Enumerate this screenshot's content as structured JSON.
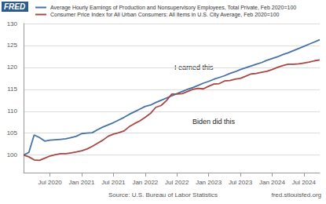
{
  "chart_data": {
    "type": "line",
    "logo": "FRED",
    "source": "Source: U.S. Bureau of Labor Statistics",
    "credit": "fred.stlouisfed.org",
    "annotations": [
      "I earned this",
      "Biden did this"
    ],
    "categories": [
      null,
      null,
      null,
      null,
      null,
      "Jul 2020",
      null,
      null,
      null,
      null,
      null,
      "Jan 2021",
      null,
      null,
      null,
      null,
      null,
      "Jul 2021",
      null,
      null,
      null,
      null,
      null,
      "Jan 2022",
      null,
      null,
      null,
      null,
      null,
      "Jul 2022",
      null,
      null,
      null,
      null,
      null,
      "Jan 2023",
      null,
      null,
      null,
      null,
      null,
      "Jul 2023",
      null,
      null,
      null,
      null,
      null,
      "Jan 2024",
      null,
      null,
      null,
      null,
      null,
      "Jul 2024",
      null,
      null,
      null
    ],
    "series": [
      {
        "name": "Average Hourly Earnings of Production and Nonsupervisory Employees, Total Private, Feb 2020=100",
        "color": "#4572a7",
        "values": [
          100,
          100.6,
          104.6,
          104.0,
          103.2,
          103.4,
          103.5,
          103.6,
          103.7,
          104.0,
          104.3,
          104.9,
          105.0,
          105.1,
          105.8,
          106.4,
          106.9,
          107.4,
          108.0,
          108.6,
          109.3,
          109.9,
          110.5,
          111.1,
          111.4,
          112.0,
          112.5,
          113.0,
          113.5,
          114.0,
          114.5,
          115.0,
          115.4,
          115.9,
          116.4,
          116.8,
          117.3,
          117.7,
          118.1,
          118.6,
          119.0,
          119.5,
          119.9,
          120.3,
          120.7,
          121.1,
          121.6,
          122.0,
          122.4,
          122.9,
          123.3,
          123.8,
          124.3,
          124.8,
          125.3,
          125.8,
          126.3
        ]
      },
      {
        "name": "Consumer Price Index for All Urban Consumers: All Items in U.S. City Average, Feb 2020=100",
        "color": "#aa4643",
        "values": [
          100,
          99.6,
          98.9,
          98.8,
          99.3,
          99.8,
          100.1,
          100.3,
          100.3,
          100.5,
          100.7,
          101.0,
          101.4,
          102.0,
          102.7,
          103.4,
          104.3,
          104.8,
          105.1,
          105.5,
          106.5,
          107.2,
          107.8,
          108.6,
          109.5,
          110.9,
          111.3,
          112.4,
          113.9,
          113.9,
          114.0,
          114.5,
          115.0,
          115.2,
          115.1,
          115.7,
          116.2,
          116.3,
          116.9,
          117.0,
          117.3,
          117.5,
          118.0,
          118.5,
          118.6,
          118.9,
          119.1,
          119.5,
          120.0,
          120.4,
          120.7,
          120.7,
          120.8,
          121.0,
          121.2,
          121.5,
          121.7
        ]
      }
    ],
    "ylim": [
      96,
      130
    ],
    "yticks": [
      100,
      105,
      110,
      115,
      120,
      125,
      130
    ],
    "grid": true,
    "legend": "top-left"
  }
}
